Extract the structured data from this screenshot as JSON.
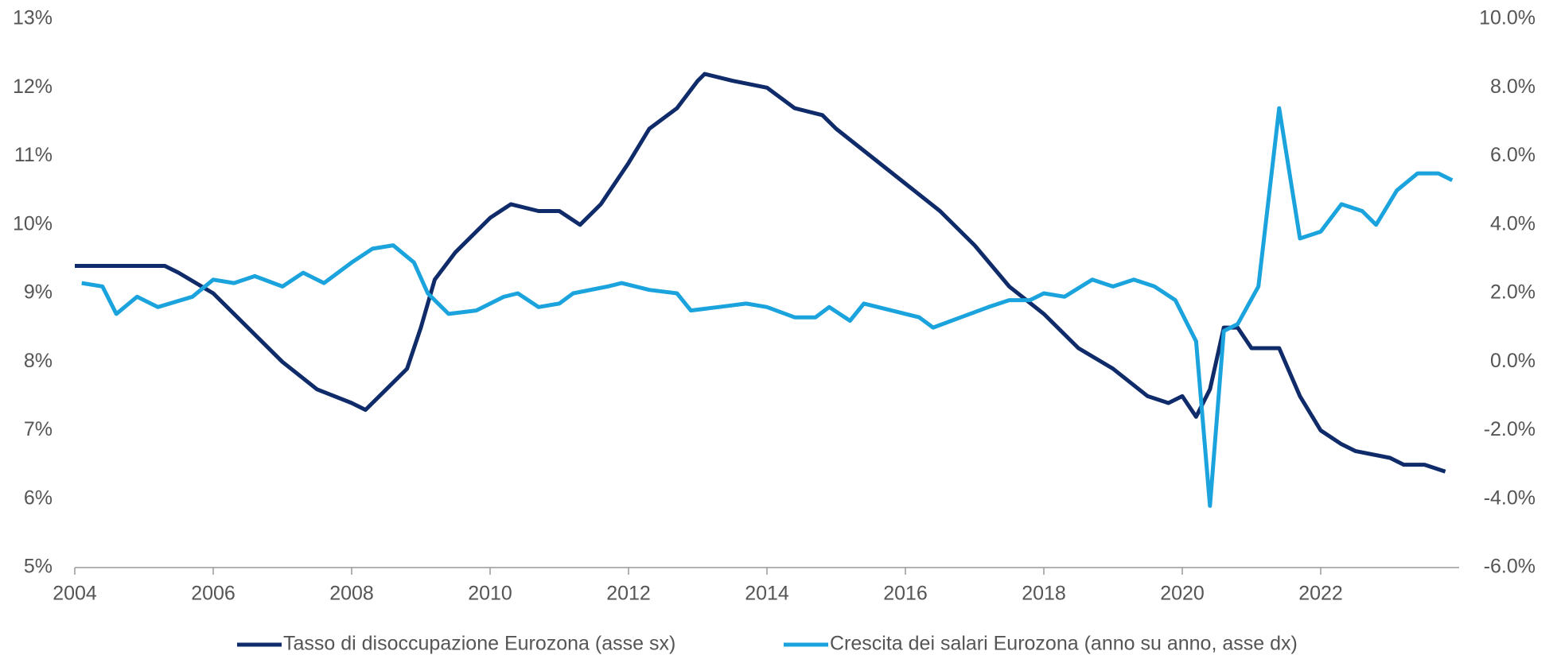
{
  "chart_data": {
    "type": "line",
    "series": [
      {
        "name": "Tasso di disoccupazione Eurozona (asse sx)",
        "color": "#0f2b69",
        "axis": "y",
        "x": [
          2004,
          2005,
          2005.3,
          2005.5,
          2006,
          2006.5,
          2007,
          2007.5,
          2008,
          2008.2,
          2008.5,
          2008.8,
          2009,
          2009.2,
          2009.5,
          2010,
          2010.3,
          2010.7,
          2011,
          2011.3,
          2011.6,
          2012,
          2012.3,
          2012.7,
          2013,
          2013.1,
          2013.5,
          2014,
          2014.4,
          2014.8,
          2015,
          2015.5,
          2016,
          2016.5,
          2017,
          2017.5,
          2018,
          2018.5,
          2019,
          2019.5,
          2019.8,
          2020,
          2020.2,
          2020.4,
          2020.6,
          2020.8,
          2021,
          2021.2,
          2021.4,
          2021.7,
          2022,
          2022.3,
          2022.5,
          2023,
          2023.2,
          2023.5,
          2023.8
        ],
        "values": [
          9.4,
          9.4,
          9.4,
          9.3,
          9.0,
          8.5,
          8.0,
          7.6,
          7.4,
          7.3,
          7.6,
          7.9,
          8.5,
          9.2,
          9.6,
          10.1,
          10.3,
          10.2,
          10.2,
          10.0,
          10.3,
          10.9,
          11.4,
          11.7,
          12.1,
          12.2,
          12.1,
          12.0,
          11.7,
          11.6,
          11.4,
          11.0,
          10.6,
          10.2,
          9.7,
          9.1,
          8.7,
          8.2,
          7.9,
          7.5,
          7.4,
          7.5,
          7.2,
          7.6,
          8.5,
          8.5,
          8.2,
          8.2,
          8.2,
          7.5,
          7.0,
          6.8,
          6.7,
          6.6,
          6.5,
          6.5,
          6.4
        ]
      },
      {
        "name": "Crescita dei salari Eurozona (anno su anno, asse dx)",
        "color": "#1aa3dc",
        "axis": "y2",
        "x": [
          2004.1,
          2004.4,
          2004.6,
          2004.9,
          2005.2,
          2005.7,
          2006,
          2006.3,
          2006.6,
          2007,
          2007.3,
          2007.6,
          2008,
          2008.3,
          2008.6,
          2008.9,
          2009.1,
          2009.4,
          2009.8,
          2010.2,
          2010.4,
          2010.7,
          2011,
          2011.2,
          2011.7,
          2011.9,
          2012.3,
          2012.7,
          2012.9,
          2013.3,
          2013.7,
          2014,
          2014.4,
          2014.7,
          2014.9,
          2015.2,
          2015.4,
          2015.8,
          2016.2,
          2016.4,
          2016.8,
          2017.2,
          2017.5,
          2017.8,
          2018,
          2018.3,
          2018.7,
          2019,
          2019.3,
          2019.6,
          2019.9,
          2020.2,
          2020.4,
          2020.6,
          2020.8,
          2021.1,
          2021.4,
          2021.7,
          2022,
          2022.3,
          2022.6,
          2022.8,
          2023.1,
          2023.4,
          2023.7,
          2023.9
        ],
        "values": [
          2.3,
          2.2,
          1.4,
          1.9,
          1.6,
          1.9,
          2.4,
          2.3,
          2.5,
          2.2,
          2.6,
          2.3,
          2.9,
          3.3,
          3.4,
          2.9,
          2.0,
          1.4,
          1.5,
          1.9,
          2.0,
          1.6,
          1.7,
          2.0,
          2.2,
          2.3,
          2.1,
          2.0,
          1.5,
          1.6,
          1.7,
          1.6,
          1.3,
          1.3,
          1.6,
          1.2,
          1.7,
          1.5,
          1.3,
          1.0,
          1.3,
          1.6,
          1.8,
          1.8,
          2.0,
          1.9,
          2.4,
          2.2,
          2.4,
          2.2,
          1.8,
          0.6,
          -4.2,
          0.9,
          1.1,
          2.2,
          7.4,
          3.6,
          3.8,
          4.6,
          4.4,
          4.0,
          5.0,
          5.5,
          5.5,
          5.3
        ]
      }
    ],
    "xlim": [
      2004,
      2024
    ],
    "xticks": [
      2004,
      2006,
      2008,
      2010,
      2012,
      2014,
      2016,
      2018,
      2020,
      2022
    ],
    "ylim": [
      5,
      13
    ],
    "yticks": [
      {
        "value": 5,
        "label": "5%"
      },
      {
        "value": 6,
        "label": "6%"
      },
      {
        "value": 7,
        "label": "7%"
      },
      {
        "value": 8,
        "label": "8%"
      },
      {
        "value": 9,
        "label": "9%"
      },
      {
        "value": 10,
        "label": "10%"
      },
      {
        "value": 11,
        "label": "11%"
      },
      {
        "value": 12,
        "label": "12%"
      },
      {
        "value": 13,
        "label": "13%"
      }
    ],
    "y2lim": [
      -6,
      10
    ],
    "y2ticks": [
      {
        "value": -6,
        "label": "-6.0%"
      },
      {
        "value": -4,
        "label": "-4.0%"
      },
      {
        "value": -2,
        "label": "-2.0%"
      },
      {
        "value": 0,
        "label": "0.0%"
      },
      {
        "value": 2,
        "label": "2.0%"
      },
      {
        "value": 4,
        "label": "4.0%"
      },
      {
        "value": 6,
        "label": "6.0%"
      },
      {
        "value": 8,
        "label": "8.0%"
      },
      {
        "value": 10,
        "label": "10.0%"
      }
    ],
    "legend": "bottom"
  }
}
